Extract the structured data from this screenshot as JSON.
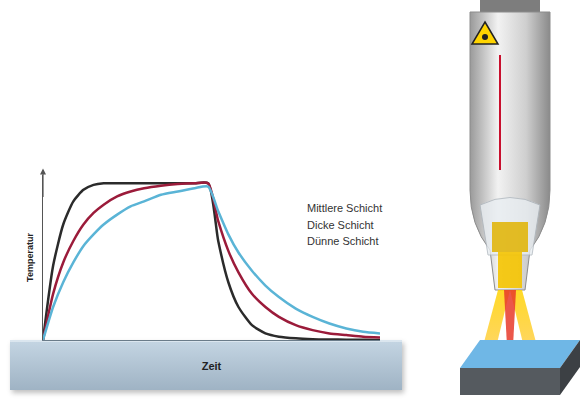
{
  "chart_data": {
    "type": "line",
    "x_label": "Zeit",
    "y_label": "Temperatur",
    "x": [
      0,
      3,
      6,
      9,
      12,
      15,
      18,
      22,
      26,
      30,
      35,
      40,
      45,
      49,
      52,
      55,
      58,
      62,
      66,
      70,
      75,
      80,
      85,
      90,
      95,
      100
    ],
    "series": [
      {
        "color": "#2b2b2b",
        "values": [
          0,
          45,
          70,
          84,
          91,
          94,
          95,
          95,
          95,
          95,
          95,
          95,
          95,
          95,
          60,
          35,
          20,
          9,
          4,
          2,
          1,
          0.5,
          0.3,
          0.2,
          0.1,
          0
        ]
      },
      {
        "color": "#9b1b3a",
        "values": [
          0,
          28,
          47,
          60,
          70,
          77,
          82,
          87,
          90,
          92,
          93.5,
          94.5,
          95,
          95,
          72,
          54,
          41,
          28,
          20,
          14,
          9,
          6,
          4,
          3,
          2,
          1.5
        ]
      },
      {
        "color": "#5ab4d6",
        "values": [
          0,
          20,
          35,
          47,
          57,
          64,
          70,
          76,
          81,
          84,
          88,
          90,
          92,
          93,
          78,
          64,
          53,
          42,
          33,
          26,
          19,
          14,
          10,
          7,
          5,
          4
        ]
      }
    ],
    "xlim": [
      0,
      100
    ],
    "ylim": [
      0,
      100
    ],
    "xticks": [],
    "yticks": [],
    "tick_labels": false,
    "grid": false,
    "annotations": [
      "Mittlere Schicht",
      "Dicke Schicht",
      "Dünne Schicht"
    ]
  }
}
